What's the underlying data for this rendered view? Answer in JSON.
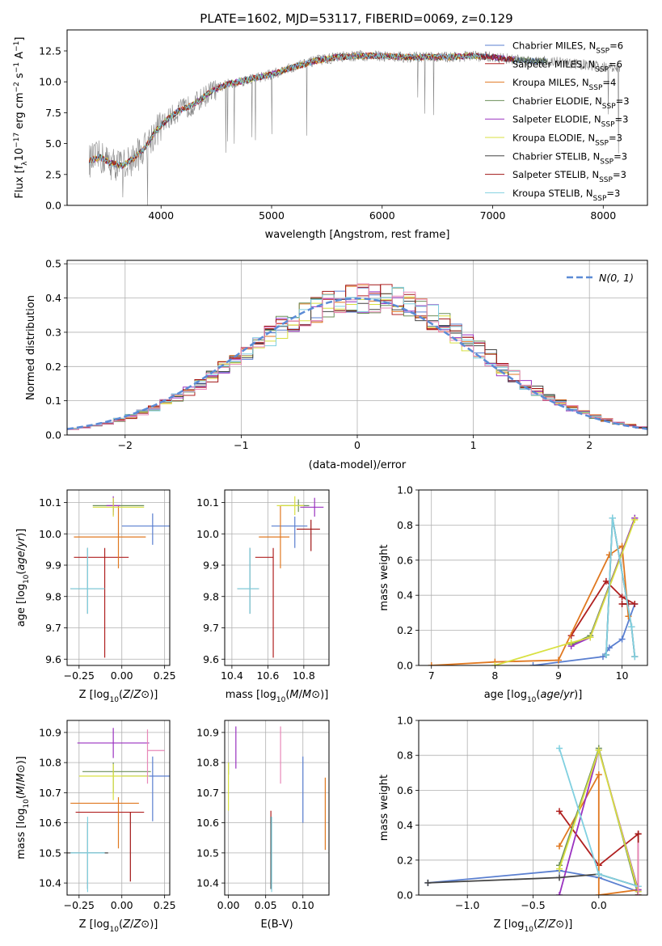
{
  "figure": {
    "title": "PLATE=1602, MJD=53117, FIBERID=0069, z=0.129"
  },
  "colors": {
    "Chabrier MILES": "#5a7fd0",
    "Salpeter MILES": "#b02020",
    "Kroupa MILES": "#e07820",
    "Chabrier ELODIE": "#6c8f5a",
    "Salpeter ELODIE": "#9a32c0",
    "Kroupa ELODIE": "#d8e040",
    "Chabrier STELIB": "#444444",
    "Salpeter STELIB": "#a01515",
    "Kroupa STELIB": "#80d0e0",
    "data": "#888888",
    "extra_hist": "#e888b8",
    "normal": "#5b8bd6"
  },
  "chart_data": [
    {
      "id": "spectrum",
      "type": "line",
      "xlabel": "wavelength [Angstrom, rest frame]",
      "ylabel": "Flux [f$_\\lambda$10$^{-17}$ erg cm$^{-2}$ s$^{-1}$ A$^{-1}$]",
      "ylabel_parts": [
        "Flux [f",
        "λ",
        "10",
        "−17",
        " erg cm",
        "−2",
        " s",
        "−1",
        " A",
        "−1",
        "]"
      ],
      "xlim": [
        3150,
        8400
      ],
      "ylim": [
        0,
        14.2
      ],
      "xticks": [
        4000,
        5000,
        6000,
        7000,
        8000
      ],
      "yticks": [
        0.0,
        2.5,
        5.0,
        7.5,
        10.0,
        12.5
      ],
      "grid": false,
      "legend_position": "top-right",
      "legend": [
        {
          "series": "Chabrier MILES",
          "n": "6"
        },
        {
          "series": "Salpeter MILES",
          "n": "6"
        },
        {
          "series": "Kroupa MILES",
          "n": "4"
        },
        {
          "series": "Chabrier ELODIE",
          "n": "3"
        },
        {
          "series": "Salpeter ELODIE",
          "n": "3"
        },
        {
          "series": "Kroupa ELODIE",
          "n": "3"
        },
        {
          "series": "Chabrier STELIB",
          "n": "3"
        },
        {
          "series": "Salpeter STELIB",
          "n": "3"
        },
        {
          "series": "Kroupa STELIB",
          "n": "3"
        }
      ],
      "legend_nssp_label": "N",
      "legend_nssp_sub": "SSP",
      "continuum": {
        "x": [
          3350,
          3450,
          3550,
          3650,
          3750,
          3850,
          3950,
          4050,
          4150,
          4300,
          4450,
          4600,
          4800,
          5000,
          5200,
          5400,
          5600,
          5800,
          6000,
          6200,
          6400,
          6600,
          6800,
          7000,
          7200,
          7400,
          7600,
          7800,
          8000,
          8150
        ],
        "y": [
          3.6,
          3.9,
          3.4,
          3.2,
          3.8,
          4.6,
          6.0,
          6.9,
          7.6,
          8.2,
          9.2,
          9.8,
          10.2,
          10.6,
          11.2,
          11.7,
          12.0,
          12.1,
          12.1,
          12.0,
          12.0,
          12.0,
          12.1,
          12.0,
          11.8,
          11.7,
          11.6,
          11.4,
          11.2,
          11.0
        ]
      },
      "model_range": [
        3350,
        7500
      ]
    },
    {
      "id": "residuals",
      "type": "histogram",
      "xlabel": "(data-model)/error",
      "ylabel": "Normed distribution",
      "xlim": [
        -2.5,
        2.5
      ],
      "ylim": [
        0,
        0.51
      ],
      "xticks": [
        -2,
        -1,
        0,
        1,
        2
      ],
      "xtick_labels": [
        "−2",
        "−1",
        "0",
        "1",
        "2"
      ],
      "yticks": [
        0.0,
        0.1,
        0.2,
        0.3,
        0.4,
        0.5
      ],
      "grid": true,
      "legend_label": "N(0, 1)",
      "bin_width": 0.1
    },
    {
      "id": "age_vs_Z",
      "type": "scatter",
      "xlabel": "Z [log10(Z/Z⊙)]",
      "ylabel": "age  [log10(age/yr)]",
      "xlim": [
        -0.32,
        0.28
      ],
      "ylim": [
        9.58,
        10.14
      ],
      "xticks": [
        -0.25,
        0.0,
        0.25
      ],
      "xtick_labels": [
        "−0.25",
        "0.00",
        "0.25"
      ],
      "yticks": [
        9.6,
        9.7,
        9.8,
        9.9,
        10.0,
        10.1
      ],
      "points": [
        {
          "s": "Chabrier MILES",
          "x": 0.18,
          "y": 10.025,
          "xerr": [
            0.18,
            0.18
          ],
          "yerr": [
            0.06,
            0.04
          ]
        },
        {
          "s": "Salpeter MILES",
          "x": -0.1,
          "y": 9.925,
          "xerr": [
            0.18,
            0.14
          ],
          "yerr": [
            0.32,
            0.03
          ]
        },
        {
          "s": "Kroupa MILES",
          "x": -0.02,
          "y": 9.99,
          "xerr": [
            0.26,
            0.16
          ],
          "yerr": [
            0.1,
            0.1
          ]
        },
        {
          "s": "Chabrier ELODIE",
          "x": -0.05,
          "y": 10.09,
          "xerr": [
            0.12,
            0.18
          ],
          "yerr": [
            0.02,
            0.02
          ]
        },
        {
          "s": "Salpeter ELODIE",
          "x": -0.05,
          "y": 10.09,
          "xerr": [
            0.04,
            0.04
          ],
          "yerr": [
            0.03,
            0.03
          ]
        },
        {
          "s": "Kroupa ELODIE",
          "x": -0.05,
          "y": 10.085,
          "xerr": [
            0.12,
            0.18
          ],
          "yerr": [
            0.03,
            0.03
          ]
        },
        {
          "s": "Chabrier STELIB",
          "x": -0.2,
          "y": 9.825,
          "xerr": [
            0.1,
            0.1
          ],
          "yerr": [
            0.08,
            0.13
          ]
        },
        {
          "s": "Salpeter STELIB",
          "x": 0.0,
          "y": 10.0,
          "xerr": [
            0.0,
            0.0
          ],
          "yerr": [
            0.0,
            0.0
          ]
        },
        {
          "s": "Kroupa STELIB",
          "x": -0.2,
          "y": 9.825,
          "xerr": [
            0.1,
            0.1
          ],
          "yerr": [
            0.08,
            0.13
          ]
        }
      ]
    },
    {
      "id": "age_vs_mass",
      "type": "scatter",
      "xlabel": "mass [log10(M/M⊙)]",
      "xlim": [
        10.36,
        10.94
      ],
      "ylim": [
        9.58,
        10.14
      ],
      "xticks": [
        10.4,
        10.6,
        10.8
      ],
      "xtick_labels": [
        "10.4",
        "10.6",
        "10.8"
      ],
      "yticks": [
        9.6,
        9.7,
        9.8,
        9.9,
        10.0,
        10.1
      ],
      "points": [
        {
          "s": "Chabrier MILES",
          "x": 10.75,
          "y": 10.025,
          "xerr": [
            0.13,
            0.07
          ],
          "yerr": [
            0.07,
            0.03
          ]
        },
        {
          "s": "Salpeter MILES",
          "x": 10.63,
          "y": 9.925,
          "xerr": [
            0.1,
            0.0
          ],
          "yerr": [
            0.32,
            0.03
          ]
        },
        {
          "s": "Kroupa MILES",
          "x": 10.67,
          "y": 9.99,
          "xerr": [
            0.12,
            0.05
          ],
          "yerr": [
            0.1,
            0.1
          ]
        },
        {
          "s": "Chabrier ELODIE",
          "x": 10.77,
          "y": 10.09,
          "xerr": [
            0.1,
            0.06
          ],
          "yerr": [
            0.02,
            0.02
          ]
        },
        {
          "s": "Salpeter ELODIE",
          "x": 10.86,
          "y": 10.085,
          "xerr": [
            0.08,
            0.05
          ],
          "yerr": [
            0.03,
            0.03
          ]
        },
        {
          "s": "Kroupa ELODIE",
          "x": 10.75,
          "y": 10.09,
          "xerr": [
            0.1,
            0.05
          ],
          "yerr": [
            0.03,
            0.03
          ]
        },
        {
          "s": "Chabrier STELIB",
          "x": 10.5,
          "y": 9.825,
          "xerr": [
            0.07,
            0.05
          ],
          "yerr": [
            0.08,
            0.13
          ]
        },
        {
          "s": "Salpeter STELIB",
          "x": 10.84,
          "y": 10.015,
          "xerr": [
            0.08,
            0.05
          ],
          "yerr": [
            0.07,
            0.03
          ]
        },
        {
          "s": "Kroupa STELIB",
          "x": 10.5,
          "y": 9.825,
          "xerr": [
            0.07,
            0.05
          ],
          "yerr": [
            0.08,
            0.13
          ]
        }
      ]
    },
    {
      "id": "mass_weight_vs_age",
      "type": "line",
      "xlabel": "age  [log10(age/yr)]",
      "ylabel": "mass weight",
      "xlim": [
        6.8,
        10.4
      ],
      "ylim": [
        0,
        1.0
      ],
      "xticks": [
        7,
        8,
        9,
        10
      ],
      "yticks": [
        0.0,
        0.2,
        0.4,
        0.6,
        0.8,
        1.0
      ],
      "grid": true,
      "series": [
        {
          "name": "Chabrier MILES",
          "x": [
            8.6,
            9.7,
            9.8,
            10.0,
            10.2
          ],
          "y": [
            0.0,
            0.05,
            0.1,
            0.15,
            0.35
          ]
        },
        {
          "name": "Salpeter MILES",
          "x": [
            9.2,
            9.75,
            10.0,
            10.2
          ],
          "y": [
            0.17,
            0.48,
            0.39,
            0.35
          ]
        },
        {
          "name": "Kroupa MILES",
          "x": [
            7.0,
            8.0,
            9.0,
            9.8,
            10.0,
            10.1
          ],
          "y": [
            0.0,
            0.02,
            0.03,
            0.63,
            0.68,
            0.28
          ]
        },
        {
          "name": "Chabrier ELODIE",
          "x": [
            9.2,
            9.5,
            10.2
          ],
          "y": [
            0.12,
            0.17,
            0.84
          ]
        },
        {
          "name": "Salpeter ELODIE",
          "x": [
            9.2,
            9.5,
            10.2
          ],
          "y": [
            0.11,
            0.16,
            0.84
          ]
        },
        {
          "name": "Kroupa ELODIE",
          "x": [
            8.0,
            9.2,
            9.5,
            10.2
          ],
          "y": [
            0.0,
            0.13,
            0.16,
            0.83
          ]
        },
        {
          "name": "Chabrier STELIB",
          "x": [
            9.75,
            9.85,
            10.15,
            10.2
          ],
          "y": [
            0.06,
            0.84,
            0.22,
            0.05
          ]
        },
        {
          "name": "Salpeter STELIB",
          "x": [
            10.0,
            10.1
          ],
          "y": [
            0.35,
            0.35
          ]
        },
        {
          "name": "Kroupa STELIB",
          "x": [
            9.75,
            9.85,
            10.15,
            10.2
          ],
          "y": [
            0.06,
            0.84,
            0.22,
            0.05
          ]
        }
      ]
    },
    {
      "id": "mass_vs_Z",
      "type": "scatter",
      "xlabel": "Z [log10(Z/Z⊙)]",
      "ylabel": "mass [log10(M/M⊙)]",
      "xlim": [
        -0.32,
        0.28
      ],
      "ylim": [
        10.36,
        10.94
      ],
      "xticks": [
        -0.25,
        0.0,
        0.25
      ],
      "xtick_labels": [
        "−0.25",
        "0.00",
        "0.25"
      ],
      "yticks": [
        10.4,
        10.5,
        10.6,
        10.7,
        10.8,
        10.9
      ],
      "points": [
        {
          "s": "Chabrier MILES",
          "x": 0.18,
          "y": 10.755,
          "xerr": [
            0.18,
            0.18
          ],
          "yerr": [
            0.15,
            0.065
          ]
        },
        {
          "s": "Salpeter MILES",
          "x": -0.05,
          "y": 10.635,
          "xerr": [
            0.22,
            0.18
          ],
          "yerr": [
            0.0,
            0.0
          ]
        },
        {
          "s": "Kroupa MILES",
          "x": -0.02,
          "y": 10.665,
          "xerr": [
            0.28,
            0.12
          ],
          "yerr": [
            0.15,
            0.02
          ]
        },
        {
          "s": "Chabrier ELODIE",
          "x": -0.05,
          "y": 10.77,
          "xerr": [
            0.18,
            0.22
          ],
          "yerr": [
            0.07,
            0.03
          ]
        },
        {
          "s": "Salpeter ELODIE",
          "x": -0.05,
          "y": 10.865,
          "xerr": [
            0.21,
            0.21
          ],
          "yerr": [
            0.05,
            0.05
          ]
        },
        {
          "s": "Kroupa ELODIE",
          "x": -0.05,
          "y": 10.755,
          "xerr": [
            0.2,
            0.21
          ],
          "yerr": [
            0.08,
            0.04
          ]
        },
        {
          "s": "Chabrier STELIB",
          "x": -0.2,
          "y": 10.5,
          "xerr": [
            0.12,
            0.12
          ],
          "yerr": [
            0.12,
            0.1
          ]
        },
        {
          "s": "Salpeter STELIB",
          "x": 0.05,
          "y": 10.635,
          "xerr": [
            0.0,
            0.0
          ],
          "yerr": [
            0.23,
            0.0
          ]
        },
        {
          "s": "Kroupa STELIB",
          "x": -0.2,
          "y": 10.5,
          "xerr": [
            0.1,
            0.1
          ],
          "yerr": [
            0.13,
            0.12
          ]
        }
      ],
      "extra_points": [
        {
          "x": 0.15,
          "y": 10.84,
          "xerr": [
            0.0,
            0.1
          ],
          "yerr": [
            0.11,
            0.07
          ]
        }
      ]
    },
    {
      "id": "mass_vs_ebv",
      "type": "scatter",
      "xlabel": "E(B-V)",
      "xlim": [
        -0.005,
        0.135
      ],
      "ylim": [
        10.36,
        10.94
      ],
      "xticks": [
        0.0,
        0.05,
        0.1
      ],
      "xtick_labels": [
        "0.00",
        "0.05",
        "0.10"
      ],
      "yticks": [
        10.4,
        10.5,
        10.6,
        10.7,
        10.8,
        10.9
      ],
      "points": [
        {
          "s": "Chabrier MILES",
          "x": 0.1,
          "y": 10.72,
          "yerr": [
            0.12,
            0.1
          ]
        },
        {
          "s": "Salpeter MILES",
          "x": 0.057,
          "y": 10.6,
          "yerr": [
            0.0,
            0.04
          ]
        },
        {
          "s": "Kroupa MILES",
          "x": 0.13,
          "y": 10.63,
          "yerr": [
            0.12,
            0.12
          ]
        },
        {
          "s": "Chabrier ELODIE",
          "x": 0.0,
          "y": 10.78,
          "yerr": [
            0.02,
            0.02
          ]
        },
        {
          "s": "Salpeter ELODIE",
          "x": 0.01,
          "y": 10.85,
          "yerr": [
            0.07,
            0.07
          ]
        },
        {
          "s": "Kroupa ELODIE",
          "x": 0.0,
          "y": 10.72,
          "yerr": [
            0.08,
            0.08
          ]
        },
        {
          "s": "Chabrier STELIB",
          "x": 0.057,
          "y": 10.5,
          "yerr": [
            0.12,
            0.12
          ]
        },
        {
          "s": "Salpeter STELIB",
          "x": 0.057,
          "y": 10.55,
          "yerr": [
            0.0,
            0.0
          ]
        },
        {
          "s": "Kroupa STELIB",
          "x": 0.058,
          "y": 10.5,
          "yerr": [
            0.13,
            0.12
          ]
        }
      ],
      "extra_points": [
        {
          "x": 0.07,
          "y": 10.82,
          "yerr": [
            0.09,
            0.1
          ]
        }
      ]
    },
    {
      "id": "mass_weight_vs_Z",
      "type": "line",
      "xlabel": "Z [log10(Z/Z⊙)]",
      "ylabel": "mass weight",
      "xlim": [
        -1.37,
        0.37
      ],
      "ylim": [
        0,
        1.0
      ],
      "xticks": [
        -1.0,
        -0.5,
        0.0
      ],
      "xtick_labels": [
        "−1.0",
        "−0.5",
        "0.0"
      ],
      "yticks": [
        0.0,
        0.2,
        0.4,
        0.6,
        0.8,
        1.0
      ],
      "grid": true,
      "series": [
        {
          "name": "Chabrier MILES",
          "x": [
            -1.3,
            -0.3,
            0.0,
            0.3
          ],
          "y": [
            0.07,
            0.14,
            0.1,
            0.02
          ]
        },
        {
          "name": "Salpeter MILES",
          "x": [
            -0.3,
            0.0,
            0.3
          ],
          "y": [
            0.48,
            0.17,
            0.35
          ]
        },
        {
          "name": "Kroupa MILES",
          "x": [
            -0.3,
            0.0,
            0.0,
            0.3
          ],
          "y": [
            0.28,
            0.69,
            0.0,
            0.03
          ]
        },
        {
          "name": "Chabrier ELODIE",
          "x": [
            -0.3,
            0.0,
            0.3
          ],
          "y": [
            0.17,
            0.84,
            0.0
          ]
        },
        {
          "name": "Salpeter ELODIE",
          "x": [
            -0.3,
            0.0,
            0.3
          ],
          "y": [
            0.0,
            0.83,
            0.03
          ]
        },
        {
          "name": "Kroupa ELODIE",
          "x": [
            -0.3,
            0.0,
            0.3
          ],
          "y": [
            0.15,
            0.83,
            0.02
          ]
        },
        {
          "name": "Chabrier STELIB",
          "x": [
            -1.3,
            -0.3,
            0.0,
            0.3
          ],
          "y": [
            0.07,
            0.1,
            0.12,
            0.05
          ]
        },
        {
          "name": "Salpeter STELIB",
          "x": [
            0.3,
            0.3
          ],
          "y": [
            0.0,
            0.35
          ]
        },
        {
          "name": "Kroupa STELIB",
          "x": [
            -0.3,
            0.0,
            0.3
          ],
          "y": [
            0.84,
            0.12,
            0.05
          ]
        }
      ],
      "extra_series": {
        "x": [
          0.3,
          0.3
        ],
        "y": [
          0.0,
          0.3
        ]
      }
    }
  ]
}
